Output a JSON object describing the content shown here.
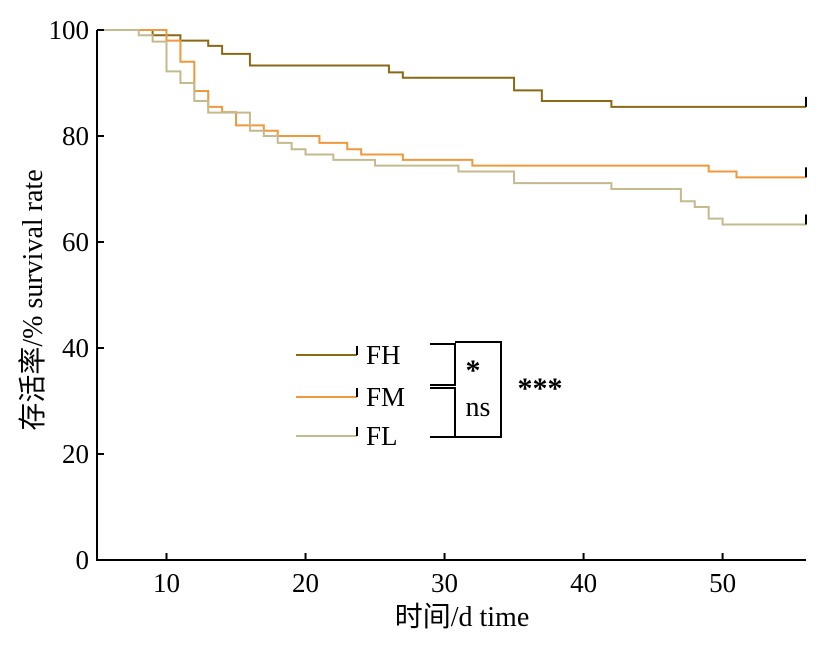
{
  "chart_data": {
    "type": "line",
    "subtype": "kaplan-meier step curve",
    "xlabel": "时间/d time",
    "ylabel": "存活率/% survival rate",
    "xlim": [
      5,
      56
    ],
    "ylim": [
      0,
      100
    ],
    "xticks": [
      10,
      20,
      30,
      40,
      50
    ],
    "yticks": [
      0,
      20,
      40,
      60,
      80,
      100
    ],
    "grid": false,
    "legend_placement": "center",
    "series": [
      {
        "name": "FH",
        "color": "#8B6914",
        "x": [
          5,
          9,
          11,
          13,
          14,
          16,
          26,
          27,
          35,
          37,
          42,
          56
        ],
        "y": [
          100,
          99,
          98,
          97,
          95.5,
          93.3,
          92,
          91,
          88.6,
          86.6,
          85.5,
          85.5
        ],
        "end_value": 85.5
      },
      {
        "name": "FM",
        "color": "#F0983C",
        "x": [
          5,
          8,
          10,
          11,
          12,
          13,
          14,
          15,
          17,
          18,
          21,
          23,
          24,
          27,
          32,
          49,
          51,
          56
        ],
        "y": [
          100,
          100,
          98,
          94,
          88.5,
          85.5,
          84.5,
          82,
          81,
          80,
          78.7,
          77.5,
          76.5,
          75.5,
          74.4,
          73.3,
          72.2,
          72.2
        ],
        "end_value": 72.2
      },
      {
        "name": "FL",
        "color": "#C4BA8E",
        "x": [
          5,
          8,
          9,
          10,
          11,
          12,
          13,
          16,
          17,
          18,
          19,
          20,
          22,
          25,
          31,
          35,
          42,
          47,
          48,
          49,
          50,
          56
        ],
        "y": [
          100,
          99,
          97.8,
          92.2,
          90,
          86.6,
          84.4,
          81,
          80,
          78.7,
          77.5,
          76.5,
          75.5,
          74.4,
          73.3,
          71.1,
          70,
          67.7,
          66.6,
          64.4,
          63.3,
          63.3
        ],
        "end_value": 63.3
      }
    ],
    "annotations": [
      {
        "text": "*",
        "between": [
          "FH",
          "FM"
        ]
      },
      {
        "text": "ns",
        "between": [
          "FM",
          "FL"
        ]
      },
      {
        "text": "***",
        "between": [
          "FH",
          "FL"
        ]
      }
    ]
  }
}
